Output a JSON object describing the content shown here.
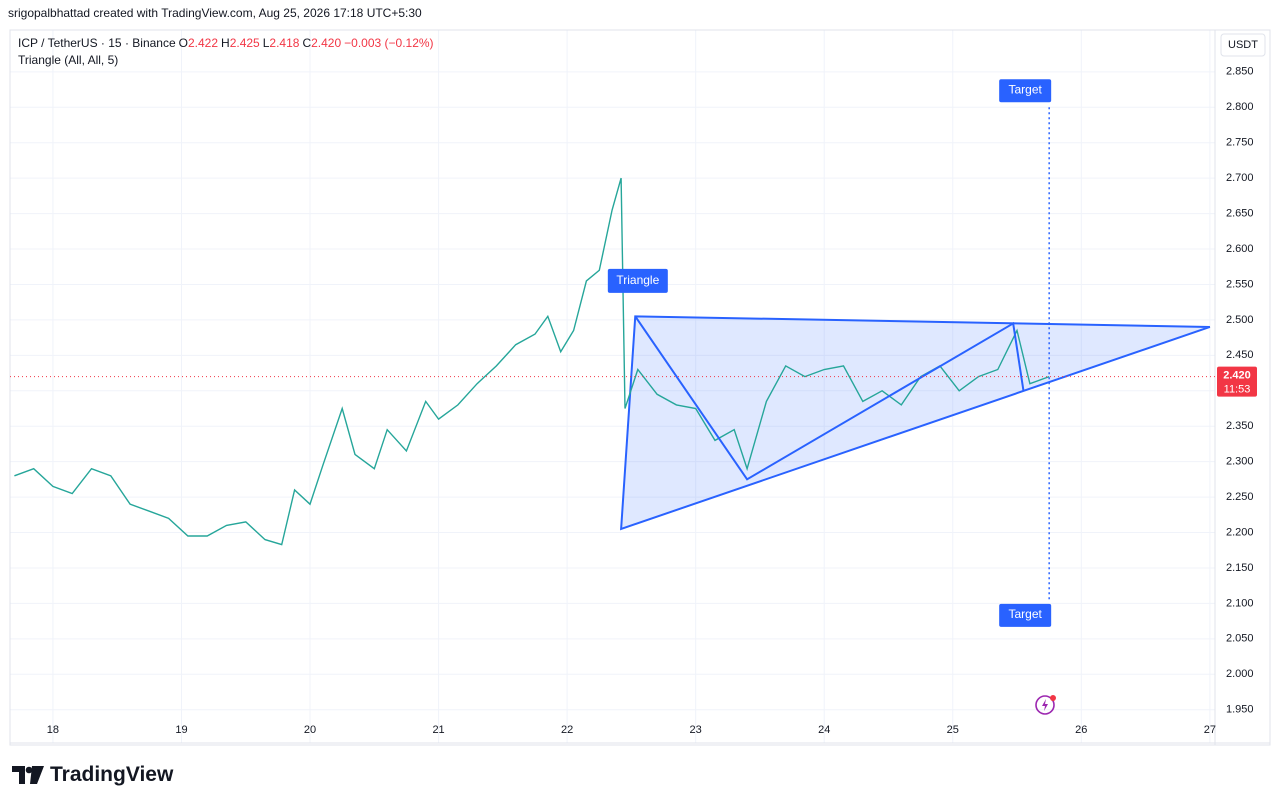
{
  "header": "srigopalbhattad created with TradingView.com, Aug 25, 2026 17:18 UTC+5:30",
  "brand": "TradingView",
  "chart_data": {
    "type": "line",
    "symbol": "ICP / TetherUS · 15 · Binance",
    "ohlc": [
      {
        "label": "O",
        "value": 2.422
      },
      {
        "label": "H",
        "value": 2.425
      },
      {
        "label": "L",
        "value": 2.418
      },
      {
        "label": "C",
        "value": 2.42,
        "text": "2.420"
      }
    ],
    "change": {
      "value": -0.003,
      "label": "−0.003 (−0.12%)"
    },
    "indicator": "Triangle (All, All, 5)",
    "currency": "USDT",
    "color": "#26a69a",
    "x": [
      17.7,
      17.85,
      18.0,
      18.15,
      18.3,
      18.45,
      18.6,
      18.75,
      18.9,
      19.05,
      19.2,
      19.35,
      19.5,
      19.65,
      19.78,
      19.88,
      20.0,
      20.1,
      20.25,
      20.35,
      20.5,
      20.6,
      20.75,
      20.9,
      21.0,
      21.15,
      21.3,
      21.45,
      21.6,
      21.75,
      21.85,
      21.95,
      22.05,
      22.15,
      22.25,
      22.35,
      22.42,
      22.45,
      22.55,
      22.7,
      22.85,
      23.0,
      23.15,
      23.3,
      23.4,
      23.55,
      23.7,
      23.85,
      24.0,
      24.15,
      24.3,
      24.45,
      24.6,
      24.75,
      24.9,
      25.05,
      25.2,
      25.35,
      25.5,
      25.6,
      25.75
    ],
    "values": [
      2.28,
      2.29,
      2.265,
      2.255,
      2.29,
      2.28,
      2.24,
      2.23,
      2.22,
      2.195,
      2.195,
      2.21,
      2.215,
      2.19,
      2.183,
      2.26,
      2.24,
      2.295,
      2.375,
      2.31,
      2.29,
      2.345,
      2.315,
      2.385,
      2.36,
      2.38,
      2.41,
      2.435,
      2.465,
      2.48,
      2.505,
      2.455,
      2.485,
      2.555,
      2.57,
      2.655,
      2.7,
      2.375,
      2.43,
      2.395,
      2.38,
      2.375,
      2.33,
      2.345,
      2.29,
      2.385,
      2.435,
      2.42,
      2.43,
      2.435,
      2.385,
      2.4,
      2.38,
      2.42,
      2.435,
      2.4,
      2.42,
      2.43,
      2.485,
      2.41,
      2.42
    ],
    "last_price": {
      "value": 2.42,
      "label": "2.420"
    },
    "countdown": "11:53",
    "pattern": {
      "label": "Triangle",
      "label_x": 22.55,
      "label_y": 2.555,
      "area_x": [
        22.42,
        22.53,
        27.0
      ],
      "area_y": [
        2.205,
        2.505,
        2.49
      ],
      "zigzag_x": [
        22.53,
        23.4,
        25.47,
        25.55
      ],
      "zigzag_y": [
        2.505,
        2.275,
        2.495,
        2.4
      ],
      "target_x": 25.75,
      "targets": [
        {
          "label": "Target",
          "value": 2.8
        },
        {
          "label": "Target",
          "value": 2.105
        }
      ]
    },
    "xlim": [
      17.666,
      27.04
    ],
    "xticks": [
      18,
      19,
      20,
      21,
      22,
      23,
      24,
      25,
      26,
      27
    ],
    "ylim": [
      1.903,
      2.909
    ],
    "yticks": [
      {
        "value": 2.85,
        "label": "2.850"
      },
      {
        "value": 2.8,
        "label": "2.800"
      },
      {
        "value": 2.75,
        "label": "2.750"
      },
      {
        "value": 2.7,
        "label": "2.700"
      },
      {
        "value": 2.65,
        "label": "2.650"
      },
      {
        "value": 2.6,
        "label": "2.600"
      },
      {
        "value": 2.55,
        "label": "2.550"
      },
      {
        "value": 2.5,
        "label": "2.500"
      },
      {
        "value": 2.45,
        "label": "2.450"
      },
      {
        "value": 2.4,
        "label": "2.400"
      },
      {
        "value": 2.35,
        "label": "2.350"
      },
      {
        "value": 2.3,
        "label": "2.300"
      },
      {
        "value": 2.25,
        "label": "2.250"
      },
      {
        "value": 2.2,
        "label": "2.200"
      },
      {
        "value": 2.15,
        "label": "2.150"
      },
      {
        "value": 2.1,
        "label": "2.100"
      },
      {
        "value": 2.05,
        "label": "2.050"
      },
      {
        "value": 2.0,
        "label": "2.000"
      },
      {
        "value": 1.95,
        "label": "1.950"
      }
    ],
    "grid": true
  }
}
